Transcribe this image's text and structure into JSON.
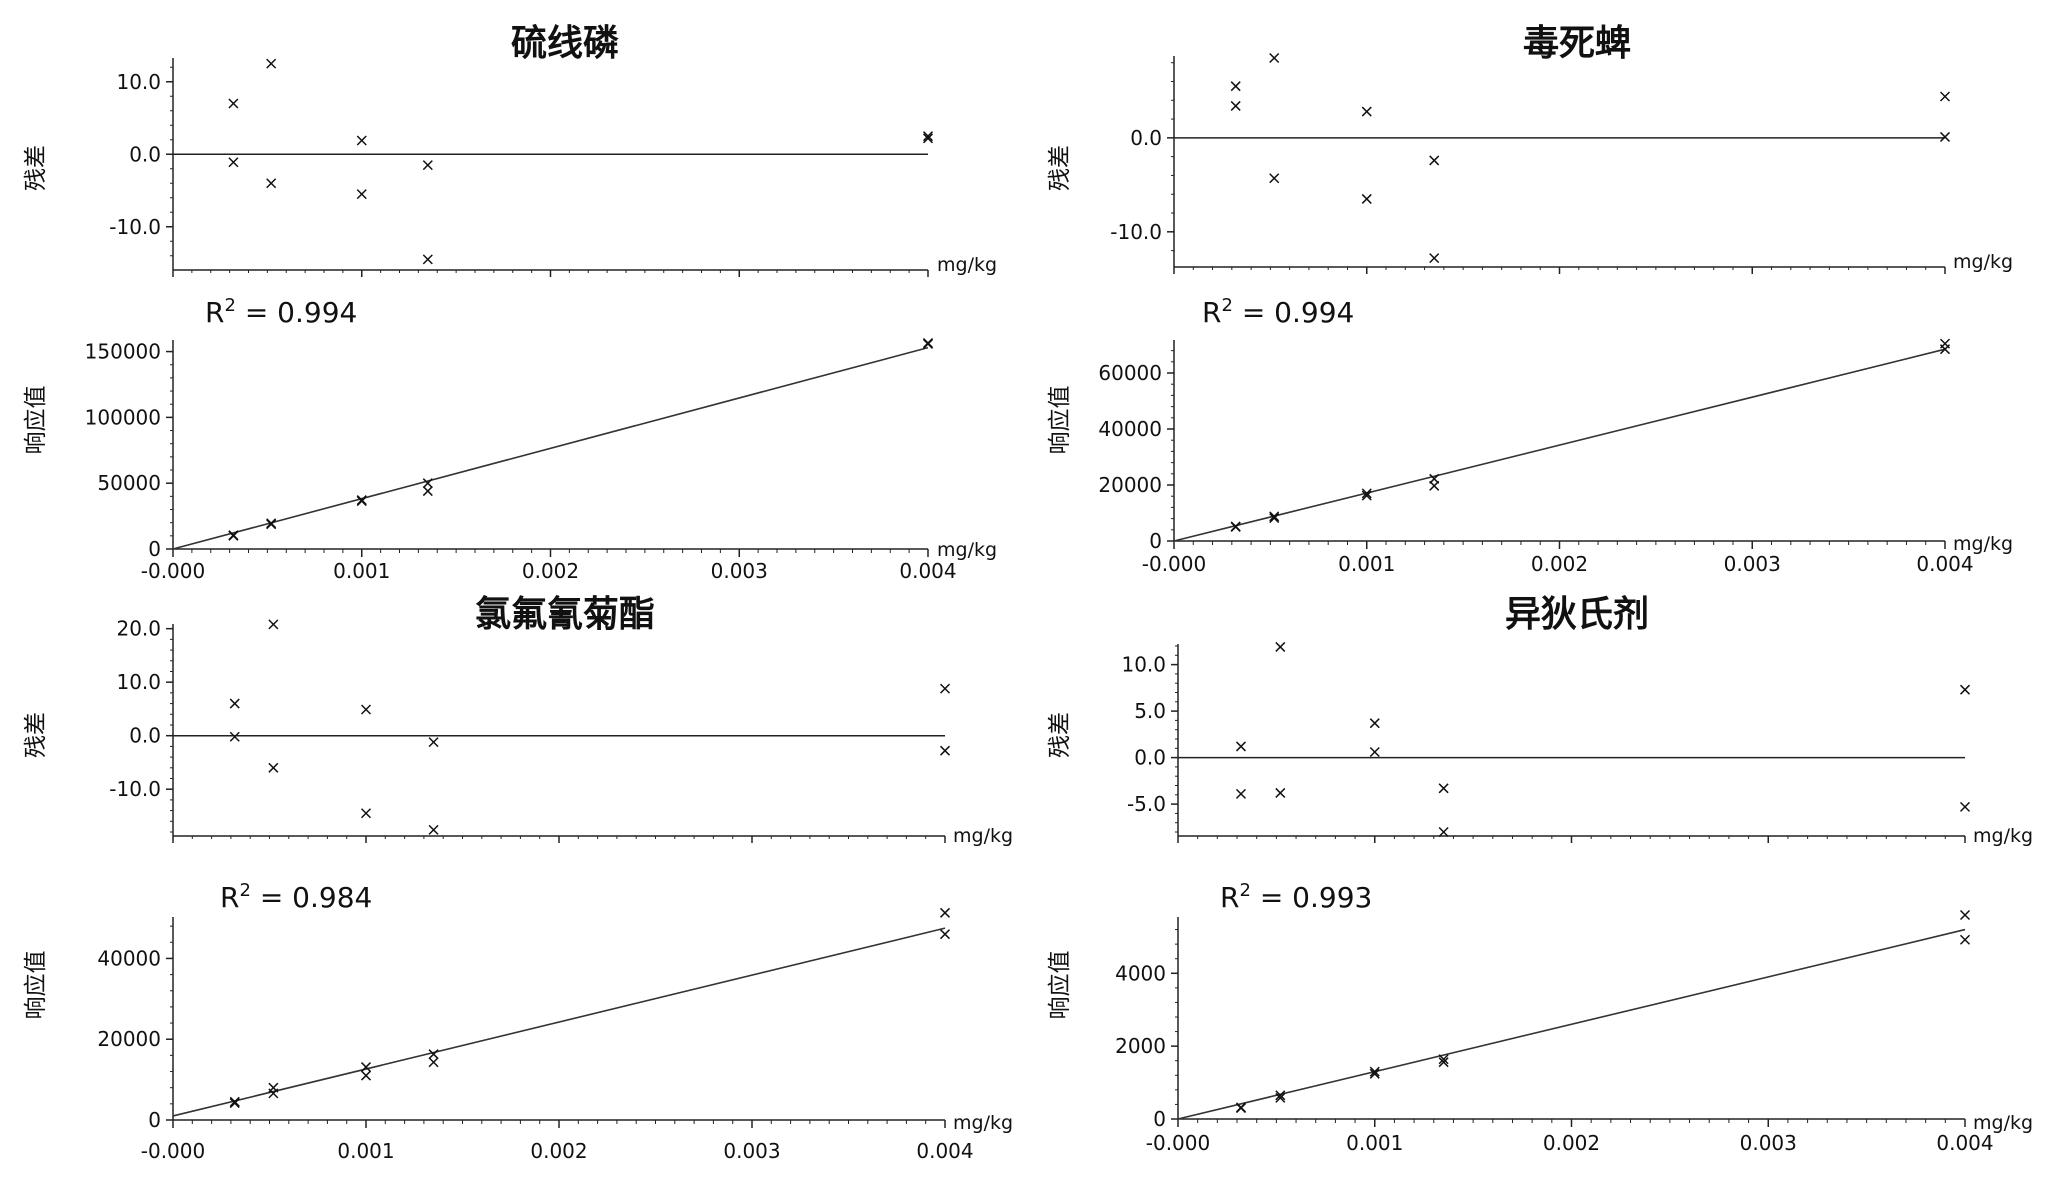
{
  "chart_data": [
    {
      "type": "scatter",
      "title": "硫线磷",
      "residual": {
        "ylabel": "残差",
        "unit": "mg/kg",
        "ylim": [
          -15,
          13
        ],
        "yticks": [
          10.0,
          0.0,
          -10.0
        ],
        "ytick_labels": [
          "10.0",
          "0.0",
          "-10.0"
        ],
        "x": [
          0.00032,
          0.00032,
          0.00052,
          0.00052,
          0.001,
          0.001,
          0.00135,
          0.00135,
          0.004,
          0.004
        ],
        "y": [
          7.0,
          -1.1,
          12.5,
          -4.0,
          1.9,
          -5.5,
          -1.5,
          -14.5,
          2.5,
          2.2
        ]
      },
      "calibration": {
        "ylabel": "响应值",
        "unit": "mg/kg",
        "r2_label": "R",
        "r2_sup": "2",
        "r2_value": " = 0.994",
        "ylim": [
          0,
          155000
        ],
        "yticks": [
          150000,
          100000,
          50000,
          0
        ],
        "ytick_labels": [
          "150000",
          "100000",
          "50000",
          "0"
        ],
        "x": [
          0.00032,
          0.00032,
          0.00052,
          0.00052,
          0.001,
          0.001,
          0.00135,
          0.00135,
          0.004,
          0.004
        ],
        "y": [
          10500,
          10000,
          19500,
          18800,
          37200,
          36400,
          50000,
          44000,
          156500,
          155800
        ],
        "fit_line": {
          "x": [
            0,
            0.004
          ],
          "y": [
            0,
            153000
          ]
        }
      },
      "xlim": [
        0,
        0.004
      ],
      "xticks": [
        0,
        0.001,
        0.002,
        0.003,
        0.004
      ],
      "xtick_labels": [
        "-0.000",
        "0.001",
        "0.002",
        "0.003",
        "0.004"
      ]
    },
    {
      "type": "scatter",
      "title": "毒死蜱",
      "residual": {
        "ylabel": "残差",
        "unit": "mg/kg",
        "ylim": [
          -13,
          8.5
        ],
        "yticks": [
          0.0,
          -10.0
        ],
        "ytick_labels": [
          "0.0",
          "-10.0"
        ],
        "x": [
          0.00032,
          0.00032,
          0.00052,
          0.00052,
          0.001,
          0.001,
          0.00135,
          0.00135,
          0.004,
          0.004
        ],
        "y": [
          5.5,
          3.4,
          8.5,
          -4.3,
          2.8,
          -6.5,
          -2.4,
          -12.8,
          4.4,
          0.1
        ]
      },
      "calibration": {
        "ylabel": "响应值",
        "unit": "mg/kg",
        "r2_label": "R",
        "r2_sup": "2",
        "r2_value": " = 0.994",
        "ylim": [
          0,
          70000
        ],
        "yticks": [
          60000,
          40000,
          20000,
          0
        ],
        "ytick_labels": [
          "60000",
          "40000",
          "20000",
          "0"
        ],
        "x": [
          0.00032,
          0.00032,
          0.00052,
          0.00052,
          0.001,
          0.001,
          0.00135,
          0.00135,
          0.004,
          0.004
        ],
        "y": [
          5200,
          5000,
          8800,
          8200,
          17000,
          16200,
          22200,
          19700,
          70500,
          68500
        ],
        "fit_line": {
          "x": [
            0,
            0.004
          ],
          "y": [
            0,
            68500
          ]
        }
      },
      "xlim": [
        0,
        0.004
      ],
      "xticks": [
        0,
        0.001,
        0.002,
        0.003,
        0.004
      ],
      "xtick_labels": [
        "-0.000",
        "0.001",
        "0.002",
        "0.003",
        "0.004"
      ]
    },
    {
      "type": "scatter",
      "title": "氯氟氰菊酯",
      "residual": {
        "ylabel": "残差",
        "unit": "mg/kg",
        "ylim": [
          -18,
          20.5
        ],
        "yticks": [
          20.0,
          10.0,
          0.0,
          -10.0
        ],
        "ytick_labels": [
          "20.0",
          "10.0",
          "0.0",
          "-10.0"
        ],
        "x": [
          0.00032,
          0.00032,
          0.00052,
          0.00052,
          0.001,
          0.001,
          0.00135,
          0.00135,
          0.004,
          0.004
        ],
        "y": [
          6.0,
          -0.2,
          20.8,
          -6.0,
          4.9,
          -14.5,
          -1.2,
          -17.6,
          8.8,
          -2.8
        ]
      },
      "calibration": {
        "ylabel": "响应值",
        "unit": "mg/kg",
        "r2_label": "R",
        "r2_sup": "2",
        "r2_value": " = 0.984",
        "ylim": [
          0,
          51500
        ],
        "yticks": [
          40000,
          20000,
          0
        ],
        "ytick_labels": [
          "40000",
          "20000",
          "0"
        ],
        "x": [
          0.00032,
          0.00032,
          0.00052,
          0.00052,
          0.001,
          0.001,
          0.00135,
          0.00135,
          0.004,
          0.004
        ],
        "y": [
          4500,
          4200,
          8000,
          6600,
          13100,
          11000,
          16300,
          14300,
          51300,
          46000
        ],
        "fit_line": {
          "x": [
            0,
            0.004
          ],
          "y": [
            1000,
            47500
          ]
        }
      },
      "xlim": [
        0,
        0.004
      ],
      "xticks": [
        0,
        0.001,
        0.002,
        0.003,
        0.004
      ],
      "xtick_labels": [
        "-0.000",
        "0.001",
        "0.002",
        "0.003",
        "0.004"
      ]
    },
    {
      "type": "scatter",
      "title": "异狄氏剂",
      "residual": {
        "ylabel": "残差",
        "unit": "mg/kg",
        "ylim": [
          -8,
          12
        ],
        "yticks": [
          10.0,
          5.0,
          0.0,
          -5.0
        ],
        "ytick_labels": [
          "10.0",
          "5.0",
          "0.0",
          "-5.0"
        ],
        "x": [
          0.00032,
          0.00032,
          0.00052,
          0.00052,
          0.001,
          0.001,
          0.00135,
          0.00135,
          0.004,
          0.004
        ],
        "y": [
          1.2,
          -3.9,
          11.9,
          -3.8,
          3.7,
          0.6,
          -3.3,
          -8.0,
          7.3,
          -5.3
        ]
      },
      "calibration": {
        "ylabel": "响应值",
        "unit": "mg/kg",
        "r2_label": "R",
        "r2_sup": "2",
        "r2_value": " = 0.993",
        "ylim": [
          0,
          5600
        ],
        "yticks": [
          4000,
          2000,
          0
        ],
        "ytick_labels": [
          "4000",
          "2000",
          "0"
        ],
        "x": [
          0.00032,
          0.00032,
          0.00052,
          0.00052,
          0.001,
          0.001,
          0.00135,
          0.00135,
          0.004,
          0.004
        ],
        "y": [
          320,
          300,
          650,
          580,
          1300,
          1240,
          1640,
          1560,
          5600,
          4920
        ],
        "fit_line": {
          "x": [
            0,
            0.004
          ],
          "y": [
            0,
            5200
          ]
        }
      },
      "xlim": [
        0,
        0.004
      ],
      "xticks": [
        0,
        0.001,
        0.002,
        0.003,
        0.004
      ],
      "xtick_labels": [
        "-0.000",
        "0.001",
        "0.002",
        "0.003",
        "0.004"
      ]
    }
  ]
}
